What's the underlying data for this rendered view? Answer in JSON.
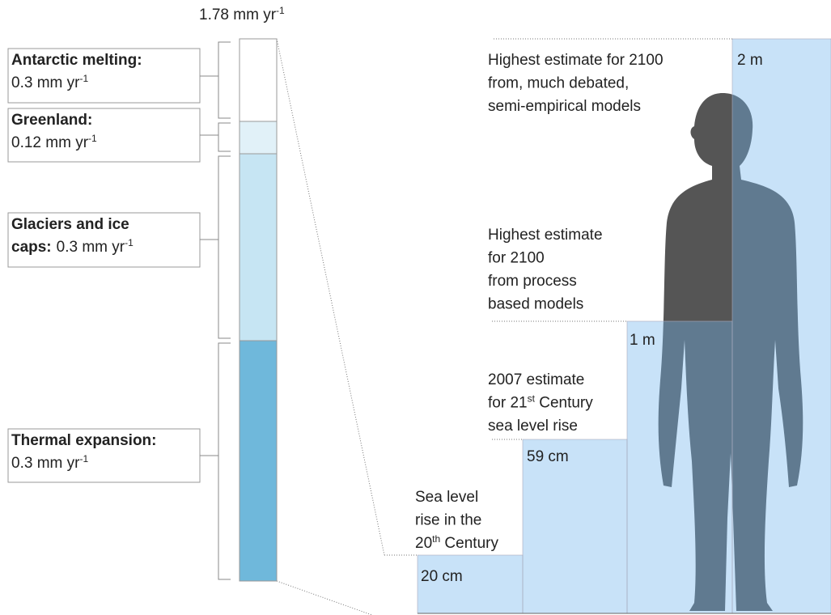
{
  "total": {
    "text": "1.78 mm yr",
    "sup": "-1"
  },
  "components": [
    {
      "name": [
        "Antarctic melting:"
      ],
      "rate": "0.3 mm yr",
      "sup": "-1"
    },
    {
      "name": [
        "Greenland:"
      ],
      "rate": "0.12 mm yr",
      "sup": "-1"
    },
    {
      "name": [
        "Glaciers and ice",
        "caps:"
      ],
      "rate": "0.3 mm yr",
      "sup": "-1"
    },
    {
      "name": [
        "Thermal expansion:"
      ],
      "rate": "0.3 mm yr",
      "sup": "-1"
    }
  ],
  "estimates": [
    {
      "label": "20 cm",
      "note": [
        {
          "text": "Sea level"
        },
        {
          "text": "rise in the"
        },
        {
          "text": "20",
          "sup": "th",
          "rest": " Century"
        }
      ]
    },
    {
      "label": "59 cm",
      "note": [
        {
          "text": "2007 estimate"
        },
        {
          "text": "for 21",
          "sup": "st",
          "rest": " Century"
        },
        {
          "text": "sea level rise"
        }
      ]
    },
    {
      "label": "1 m",
      "note": [
        {
          "text": "Highest estimate"
        },
        {
          "text": "for 2100"
        },
        {
          "text": "from process"
        },
        {
          "text": "based models"
        }
      ]
    },
    {
      "label": "2 m",
      "note": [
        {
          "text": "Highest estimate for 2100"
        },
        {
          "text": "from, much debated,"
        },
        {
          "text": "semi-empirical models"
        }
      ]
    }
  ]
}
